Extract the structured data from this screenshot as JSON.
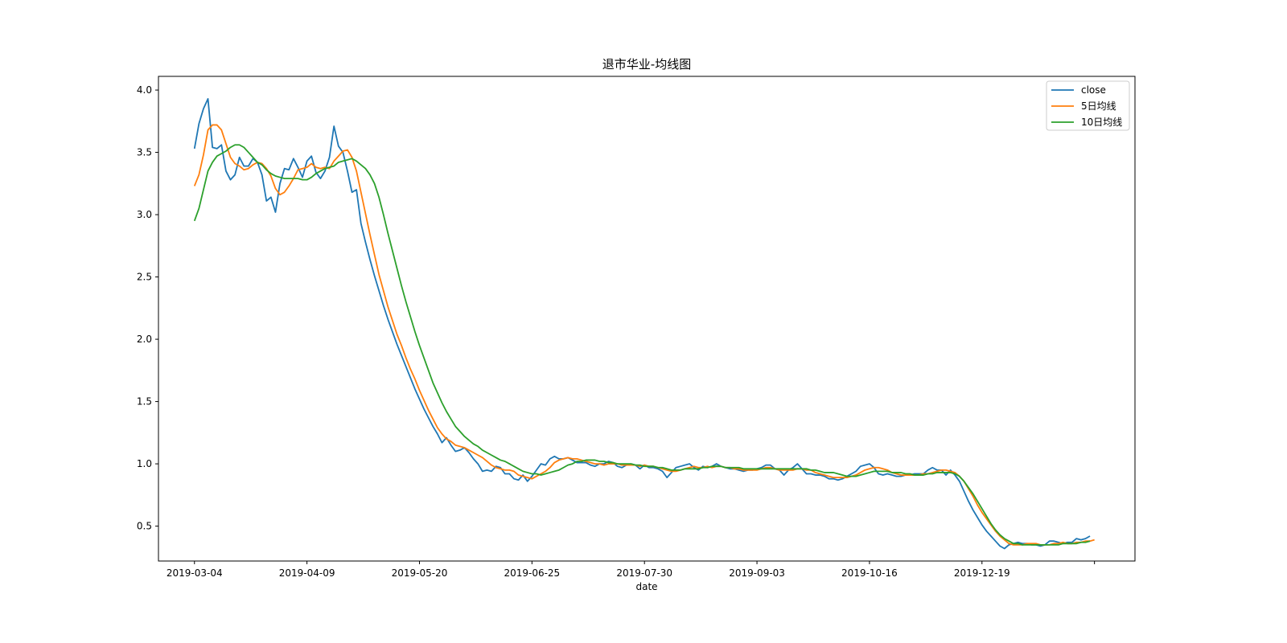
{
  "chart_data": {
    "type": "line",
    "title": "退市华业-均线图",
    "xlabel": "date",
    "ylabel": "",
    "ylim": [
      0.22,
      4.11
    ],
    "yticks": [
      0.5,
      1.0,
      1.5,
      2.0,
      2.5,
      3.0,
      3.5,
      4.0
    ],
    "ytick_labels": [
      "0.5",
      "1.0",
      "1.5",
      "2.0",
      "2.5",
      "3.0",
      "3.5",
      "4.0"
    ],
    "xlim": [
      -8,
      209
    ],
    "xticks": [
      0,
      25,
      50,
      75,
      100,
      125,
      150,
      175,
      200
    ],
    "xtick_labels": [
      "2019-03-04",
      "2019-04-09",
      "2019-05-20",
      "2019-06-25",
      "2019-07-30",
      "2019-09-03",
      "2019-10-16",
      "2019-12-19",
      ""
    ],
    "grid": false,
    "legend": "top-right",
    "series": [
      {
        "name": "close",
        "color": "#1f77b4",
        "values": [
          3.53,
          3.73,
          3.85,
          3.93,
          3.54,
          3.53,
          3.56,
          3.35,
          3.28,
          3.32,
          3.46,
          3.39,
          3.39,
          3.45,
          3.42,
          3.32,
          3.11,
          3.14,
          3.02,
          3.25,
          3.37,
          3.36,
          3.45,
          3.38,
          3.3,
          3.43,
          3.47,
          3.34,
          3.29,
          3.35,
          3.46,
          3.71,
          3.55,
          3.5,
          3.35,
          3.18,
          3.2,
          2.93,
          2.78,
          2.64,
          2.51,
          2.39,
          2.27,
          2.16,
          2.06,
          1.96,
          1.87,
          1.78,
          1.69,
          1.6,
          1.52,
          1.44,
          1.37,
          1.3,
          1.24,
          1.17,
          1.21,
          1.15,
          1.1,
          1.11,
          1.13,
          1.09,
          1.04,
          1.0,
          0.94,
          0.95,
          0.94,
          0.98,
          0.97,
          0.92,
          0.92,
          0.88,
          0.87,
          0.91,
          0.86,
          0.9,
          0.95,
          1.0,
          0.99,
          1.04,
          1.06,
          1.04,
          1.04,
          1.05,
          1.03,
          1.01,
          1.01,
          1.01,
          0.99,
          0.98,
          1.0,
          1.0,
          1.02,
          1.01,
          0.98,
          0.97,
          0.99,
          1.0,
          0.99,
          0.96,
          0.99,
          0.97,
          0.97,
          0.96,
          0.94,
          0.89,
          0.93,
          0.97,
          0.98,
          0.99,
          1.0,
          0.97,
          0.95,
          0.98,
          0.97,
          0.98,
          1.0,
          0.98,
          0.97,
          0.96,
          0.96,
          0.95,
          0.94,
          0.95,
          0.95,
          0.96,
          0.97,
          0.99,
          0.99,
          0.96,
          0.95,
          0.91,
          0.95,
          0.97,
          1.0,
          0.96,
          0.92,
          0.92,
          0.91,
          0.91,
          0.9,
          0.88,
          0.88,
          0.87,
          0.88,
          0.9,
          0.92,
          0.94,
          0.98,
          0.99,
          1.0,
          0.97,
          0.92,
          0.91,
          0.92,
          0.91,
          0.9,
          0.9,
          0.91,
          0.91,
          0.92,
          0.92,
          0.92,
          0.95,
          0.97,
          0.95,
          0.95,
          0.91,
          0.95,
          0.91,
          0.86,
          0.78,
          0.7,
          0.63,
          0.57,
          0.51,
          0.46,
          0.42,
          0.38,
          0.34,
          0.32,
          0.35,
          0.36,
          0.37,
          0.36,
          0.36,
          0.35,
          0.35,
          0.34,
          0.35,
          0.38,
          0.38,
          0.37,
          0.36,
          0.37,
          0.37,
          0.4,
          0.39,
          0.4,
          0.42
        ]
      },
      {
        "name": "5日均线",
        "color": "#ff7f0e",
        "values": [
          3.23,
          3.32,
          3.48,
          3.68,
          3.72,
          3.72,
          3.68,
          3.57,
          3.46,
          3.41,
          3.39,
          3.36,
          3.37,
          3.4,
          3.42,
          3.41,
          3.37,
          3.31,
          3.21,
          3.16,
          3.18,
          3.23,
          3.29,
          3.36,
          3.37,
          3.38,
          3.41,
          3.38,
          3.37,
          3.38,
          3.37,
          3.43,
          3.47,
          3.51,
          3.52,
          3.46,
          3.35,
          3.18,
          3.01,
          2.84,
          2.68,
          2.52,
          2.39,
          2.26,
          2.15,
          2.04,
          1.95,
          1.85,
          1.76,
          1.68,
          1.59,
          1.51,
          1.43,
          1.36,
          1.29,
          1.24,
          1.2,
          1.18,
          1.15,
          1.14,
          1.13,
          1.11,
          1.09,
          1.07,
          1.05,
          1.02,
          0.99,
          0.97,
          0.96,
          0.95,
          0.95,
          0.94,
          0.91,
          0.9,
          0.89,
          0.88,
          0.9,
          0.92,
          0.94,
          0.97,
          1.01,
          1.03,
          1.04,
          1.05,
          1.04,
          1.04,
          1.03,
          1.02,
          1.01,
          1.0,
          1.0,
          0.99,
          1.0,
          1.0,
          1.0,
          0.99,
          0.99,
          0.99,
          0.99,
          0.98,
          0.99,
          0.98,
          0.98,
          0.97,
          0.96,
          0.95,
          0.94,
          0.94,
          0.95,
          0.96,
          0.97,
          0.98,
          0.97,
          0.97,
          0.98,
          0.97,
          0.98,
          0.98,
          0.97,
          0.97,
          0.96,
          0.96,
          0.95,
          0.95,
          0.95,
          0.95,
          0.96,
          0.97,
          0.97,
          0.96,
          0.95,
          0.95,
          0.95,
          0.95,
          0.96,
          0.96,
          0.95,
          0.95,
          0.93,
          0.92,
          0.91,
          0.9,
          0.89,
          0.89,
          0.89,
          0.89,
          0.9,
          0.91,
          0.93,
          0.95,
          0.96,
          0.97,
          0.97,
          0.96,
          0.95,
          0.93,
          0.92,
          0.91,
          0.91,
          0.91,
          0.91,
          0.91,
          0.92,
          0.92,
          0.93,
          0.94,
          0.95,
          0.95,
          0.94,
          0.93,
          0.9,
          0.86,
          0.8,
          0.74,
          0.67,
          0.61,
          0.56,
          0.51,
          0.46,
          0.42,
          0.39,
          0.36,
          0.35,
          0.35,
          0.35,
          0.36,
          0.36,
          0.36,
          0.35,
          0.35,
          0.35,
          0.36,
          0.36,
          0.37,
          0.36,
          0.36,
          0.37,
          0.37,
          0.38,
          0.38,
          0.39
        ]
      },
      {
        "name": "10日均线",
        "color": "#2ca02c",
        "values": [
          2.95,
          3.05,
          3.2,
          3.35,
          3.42,
          3.47,
          3.49,
          3.51,
          3.54,
          3.56,
          3.56,
          3.54,
          3.5,
          3.46,
          3.42,
          3.4,
          3.36,
          3.33,
          3.31,
          3.3,
          3.29,
          3.29,
          3.29,
          3.29,
          3.28,
          3.28,
          3.3,
          3.33,
          3.35,
          3.37,
          3.38,
          3.39,
          3.42,
          3.43,
          3.44,
          3.45,
          3.43,
          3.4,
          3.37,
          3.32,
          3.25,
          3.14,
          3.0,
          2.85,
          2.71,
          2.57,
          2.43,
          2.3,
          2.18,
          2.06,
          1.95,
          1.85,
          1.75,
          1.65,
          1.57,
          1.49,
          1.42,
          1.36,
          1.3,
          1.26,
          1.22,
          1.19,
          1.16,
          1.14,
          1.11,
          1.09,
          1.07,
          1.05,
          1.03,
          1.02,
          1.0,
          0.98,
          0.96,
          0.94,
          0.93,
          0.92,
          0.92,
          0.91,
          0.92,
          0.93,
          0.94,
          0.95,
          0.97,
          0.99,
          1.0,
          1.02,
          1.02,
          1.03,
          1.03,
          1.03,
          1.02,
          1.02,
          1.01,
          1.01,
          1.0,
          1.0,
          1.0,
          1.0,
          0.99,
          0.99,
          0.98,
          0.98,
          0.98,
          0.97,
          0.97,
          0.96,
          0.95,
          0.95,
          0.95,
          0.96,
          0.96,
          0.96,
          0.96,
          0.97,
          0.97,
          0.98,
          0.98,
          0.98,
          0.97,
          0.97,
          0.97,
          0.97,
          0.96,
          0.96,
          0.96,
          0.96,
          0.96,
          0.96,
          0.96,
          0.96,
          0.96,
          0.96,
          0.96,
          0.96,
          0.96,
          0.96,
          0.96,
          0.95,
          0.95,
          0.94,
          0.93,
          0.93,
          0.93,
          0.92,
          0.91,
          0.9,
          0.9,
          0.9,
          0.91,
          0.92,
          0.93,
          0.94,
          0.94,
          0.94,
          0.94,
          0.93,
          0.93,
          0.93,
          0.92,
          0.92,
          0.91,
          0.91,
          0.91,
          0.92,
          0.92,
          0.93,
          0.93,
          0.93,
          0.93,
          0.92,
          0.9,
          0.86,
          0.81,
          0.76,
          0.7,
          0.64,
          0.58,
          0.52,
          0.47,
          0.43,
          0.4,
          0.38,
          0.36,
          0.36,
          0.35,
          0.35,
          0.35,
          0.35,
          0.35,
          0.35,
          0.35,
          0.35,
          0.35,
          0.36,
          0.36,
          0.36,
          0.36,
          0.37,
          0.37,
          0.38
        ]
      }
    ]
  }
}
